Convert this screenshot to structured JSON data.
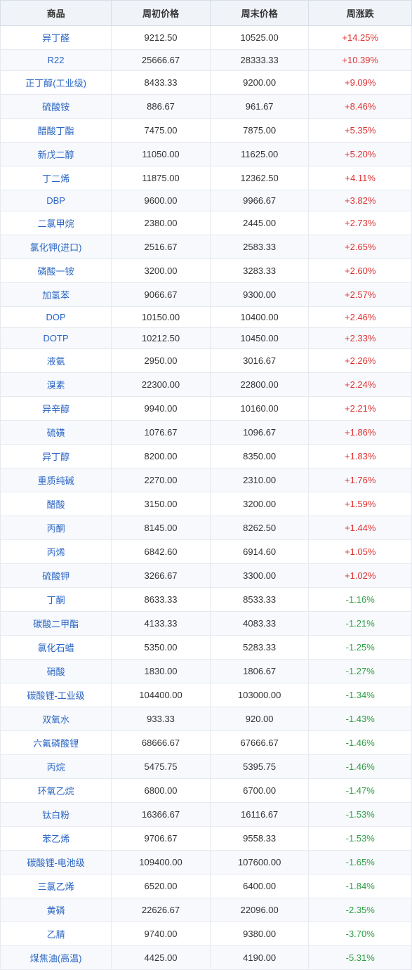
{
  "table": {
    "columns": [
      "商品",
      "周初价格",
      "周末价格",
      "周涨跌"
    ],
    "column_align": [
      "center",
      "center",
      "center",
      "center"
    ],
    "header_bg": "#f0f3f8",
    "row_alt_bg": "#f7f9fc",
    "border_color": "#e6e9ef",
    "product_color": "#2b66c4",
    "pos_color": "#e03131",
    "neg_color": "#2f9e44",
    "font_size": 13,
    "rows": [
      {
        "name": "异丁醛",
        "start": "9212.50",
        "end": "10525.00",
        "chg": "+14.25%",
        "dir": "pos"
      },
      {
        "name": "R22",
        "start": "25666.67",
        "end": "28333.33",
        "chg": "+10.39%",
        "dir": "pos"
      },
      {
        "name": "正丁醇(工业级)",
        "start": "8433.33",
        "end": "9200.00",
        "chg": "+9.09%",
        "dir": "pos"
      },
      {
        "name": "硫酸铵",
        "start": "886.67",
        "end": "961.67",
        "chg": "+8.46%",
        "dir": "pos"
      },
      {
        "name": "醋酸丁酯",
        "start": "7475.00",
        "end": "7875.00",
        "chg": "+5.35%",
        "dir": "pos"
      },
      {
        "name": "新戊二醇",
        "start": "11050.00",
        "end": "11625.00",
        "chg": "+5.20%",
        "dir": "pos"
      },
      {
        "name": "丁二烯",
        "start": "11875.00",
        "end": "12362.50",
        "chg": "+4.11%",
        "dir": "pos"
      },
      {
        "name": "DBP",
        "start": "9600.00",
        "end": "9966.67",
        "chg": "+3.82%",
        "dir": "pos"
      },
      {
        "name": "二氯甲烷",
        "start": "2380.00",
        "end": "2445.00",
        "chg": "+2.73%",
        "dir": "pos"
      },
      {
        "name": "氯化钾(进口)",
        "start": "2516.67",
        "end": "2583.33",
        "chg": "+2.65%",
        "dir": "pos"
      },
      {
        "name": "磷酸一铵",
        "start": "3200.00",
        "end": "3283.33",
        "chg": "+2.60%",
        "dir": "pos"
      },
      {
        "name": "加氢苯",
        "start": "9066.67",
        "end": "9300.00",
        "chg": "+2.57%",
        "dir": "pos"
      },
      {
        "name": "DOP",
        "start": "10150.00",
        "end": "10400.00",
        "chg": "+2.46%",
        "dir": "pos"
      },
      {
        "name": "DOTP",
        "start": "10212.50",
        "end": "10450.00",
        "chg": "+2.33%",
        "dir": "pos"
      },
      {
        "name": "液氨",
        "start": "2950.00",
        "end": "3016.67",
        "chg": "+2.26%",
        "dir": "pos"
      },
      {
        "name": "溴素",
        "start": "22300.00",
        "end": "22800.00",
        "chg": "+2.24%",
        "dir": "pos"
      },
      {
        "name": "异辛醇",
        "start": "9940.00",
        "end": "10160.00",
        "chg": "+2.21%",
        "dir": "pos"
      },
      {
        "name": "硫磺",
        "start": "1076.67",
        "end": "1096.67",
        "chg": "+1.86%",
        "dir": "pos"
      },
      {
        "name": "异丁醇",
        "start": "8200.00",
        "end": "8350.00",
        "chg": "+1.83%",
        "dir": "pos"
      },
      {
        "name": "重质纯碱",
        "start": "2270.00",
        "end": "2310.00",
        "chg": "+1.76%",
        "dir": "pos"
      },
      {
        "name": "醋酸",
        "start": "3150.00",
        "end": "3200.00",
        "chg": "+1.59%",
        "dir": "pos"
      },
      {
        "name": "丙酮",
        "start": "8145.00",
        "end": "8262.50",
        "chg": "+1.44%",
        "dir": "pos"
      },
      {
        "name": "丙烯",
        "start": "6842.60",
        "end": "6914.60",
        "chg": "+1.05%",
        "dir": "pos"
      },
      {
        "name": "硫酸钾",
        "start": "3266.67",
        "end": "3300.00",
        "chg": "+1.02%",
        "dir": "pos"
      },
      {
        "name": "丁酮",
        "start": "8633.33",
        "end": "8533.33",
        "chg": "-1.16%",
        "dir": "neg"
      },
      {
        "name": "碳酸二甲酯",
        "start": "4133.33",
        "end": "4083.33",
        "chg": "-1.21%",
        "dir": "neg"
      },
      {
        "name": "氯化石蜡",
        "start": "5350.00",
        "end": "5283.33",
        "chg": "-1.25%",
        "dir": "neg"
      },
      {
        "name": "硝酸",
        "start": "1830.00",
        "end": "1806.67",
        "chg": "-1.27%",
        "dir": "neg"
      },
      {
        "name": "碳酸锂-工业级",
        "start": "104400.00",
        "end": "103000.00",
        "chg": "-1.34%",
        "dir": "neg"
      },
      {
        "name": "双氧水",
        "start": "933.33",
        "end": "920.00",
        "chg": "-1.43%",
        "dir": "neg"
      },
      {
        "name": "六氟磷酸锂",
        "start": "68666.67",
        "end": "67666.67",
        "chg": "-1.46%",
        "dir": "neg"
      },
      {
        "name": "丙烷",
        "start": "5475.75",
        "end": "5395.75",
        "chg": "-1.46%",
        "dir": "neg"
      },
      {
        "name": "环氧乙烷",
        "start": "6800.00",
        "end": "6700.00",
        "chg": "-1.47%",
        "dir": "neg"
      },
      {
        "name": "钛白粉",
        "start": "16366.67",
        "end": "16116.67",
        "chg": "-1.53%",
        "dir": "neg"
      },
      {
        "name": "苯乙烯",
        "start": "9706.67",
        "end": "9558.33",
        "chg": "-1.53%",
        "dir": "neg"
      },
      {
        "name": "碳酸锂-电池级",
        "start": "109400.00",
        "end": "107600.00",
        "chg": "-1.65%",
        "dir": "neg"
      },
      {
        "name": "三氯乙烯",
        "start": "6520.00",
        "end": "6400.00",
        "chg": "-1.84%",
        "dir": "neg"
      },
      {
        "name": "黄磷",
        "start": "22626.67",
        "end": "22096.00",
        "chg": "-2.35%",
        "dir": "neg"
      },
      {
        "name": "乙腈",
        "start": "9740.00",
        "end": "9380.00",
        "chg": "-3.70%",
        "dir": "neg"
      },
      {
        "name": "煤焦油(高温)",
        "start": "4425.00",
        "end": "4190.00",
        "chg": "-5.31%",
        "dir": "neg"
      }
    ]
  }
}
